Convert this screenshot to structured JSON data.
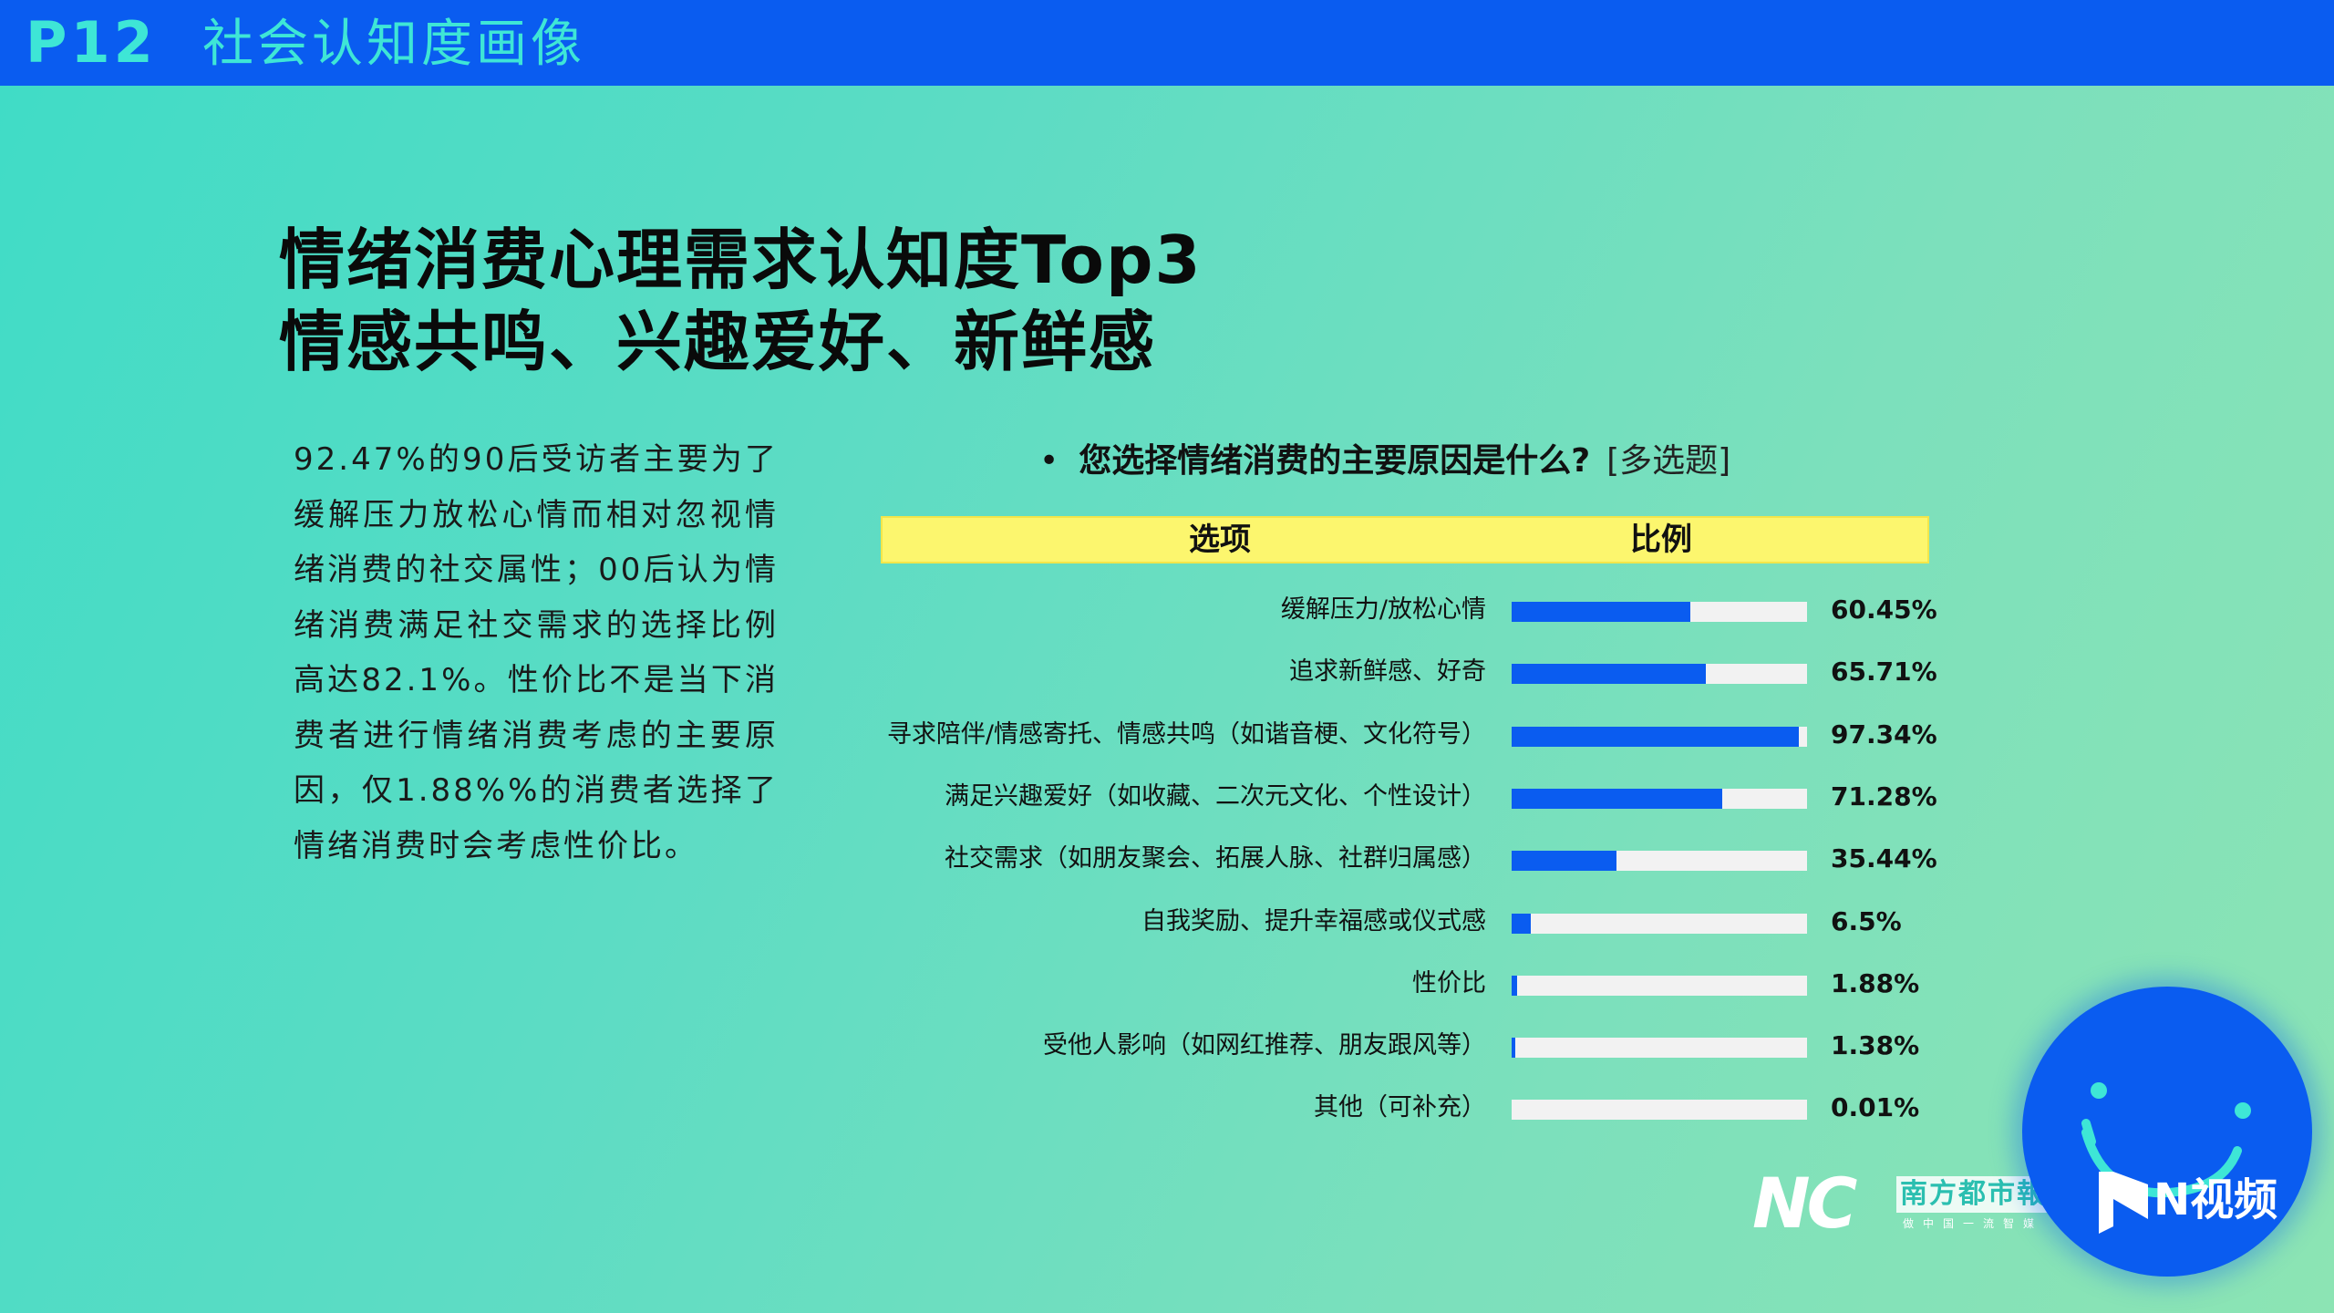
{
  "header": {
    "page_no": "P12",
    "section_title": "社会认知度画像"
  },
  "headline": {
    "line1": "情绪消费心理需求认知度Top3",
    "line2": "情感共鸣、兴趣爱好、新鲜感"
  },
  "summary": "92.47%的90后受访者主要为了缓解压力放松心情而相对忽视情绪消费的社交属性；00后认为情绪消费满足社交需求的选择比例高达82.1%。性价比不是当下消费者进行情绪消费考虑的主要原因，仅1.88%%的消费者选择了情绪消费时会考虑性价比。",
  "question": {
    "bullet": "•",
    "text": "您选择情绪消费的主要原因是什么?",
    "tag": "[多选题]"
  },
  "table_header": {
    "option": "选项",
    "ratio": "比例"
  },
  "chart_data": {
    "type": "bar",
    "orientation": "horizontal",
    "categories": [
      "缓解压力/放松心情",
      "追求新鲜感、好奇",
      "寻求陪伴/情感寄托、情感共鸣（如谐音梗、文化符号）",
      "满足兴趣爱好（如收藏、二次元文化、个性设计）",
      "社交需求（如朋友聚会、拓展人脉、社群归属感）",
      "自我奖励、提升幸福感或仪式感",
      "性价比",
      "受他人影响（如网红推荐、朋友跟风等）",
      "其他（可补充）"
    ],
    "values": [
      60.45,
      65.71,
      97.34,
      71.28,
      35.44,
      6.5,
      1.88,
      1.38,
      0.01
    ],
    "value_labels": [
      "60.45%",
      "65.71%",
      "97.34%",
      "71.28%",
      "35.44%",
      "6.5%",
      "1.88%",
      "1.38%",
      "0.01%"
    ],
    "xlim": [
      0,
      100
    ],
    "bar_color": "#0a5cf0",
    "track_color": "#f2f2f2"
  },
  "logos": {
    "nc": "NC",
    "newspaper": "南方都市報",
    "slogan": "做中国一流智媒",
    "video": "N视频"
  },
  "colors": {
    "header_bg": "#0a5cf0",
    "header_text": "#3ee6d6",
    "table_header_bg": "#fcf66e"
  }
}
